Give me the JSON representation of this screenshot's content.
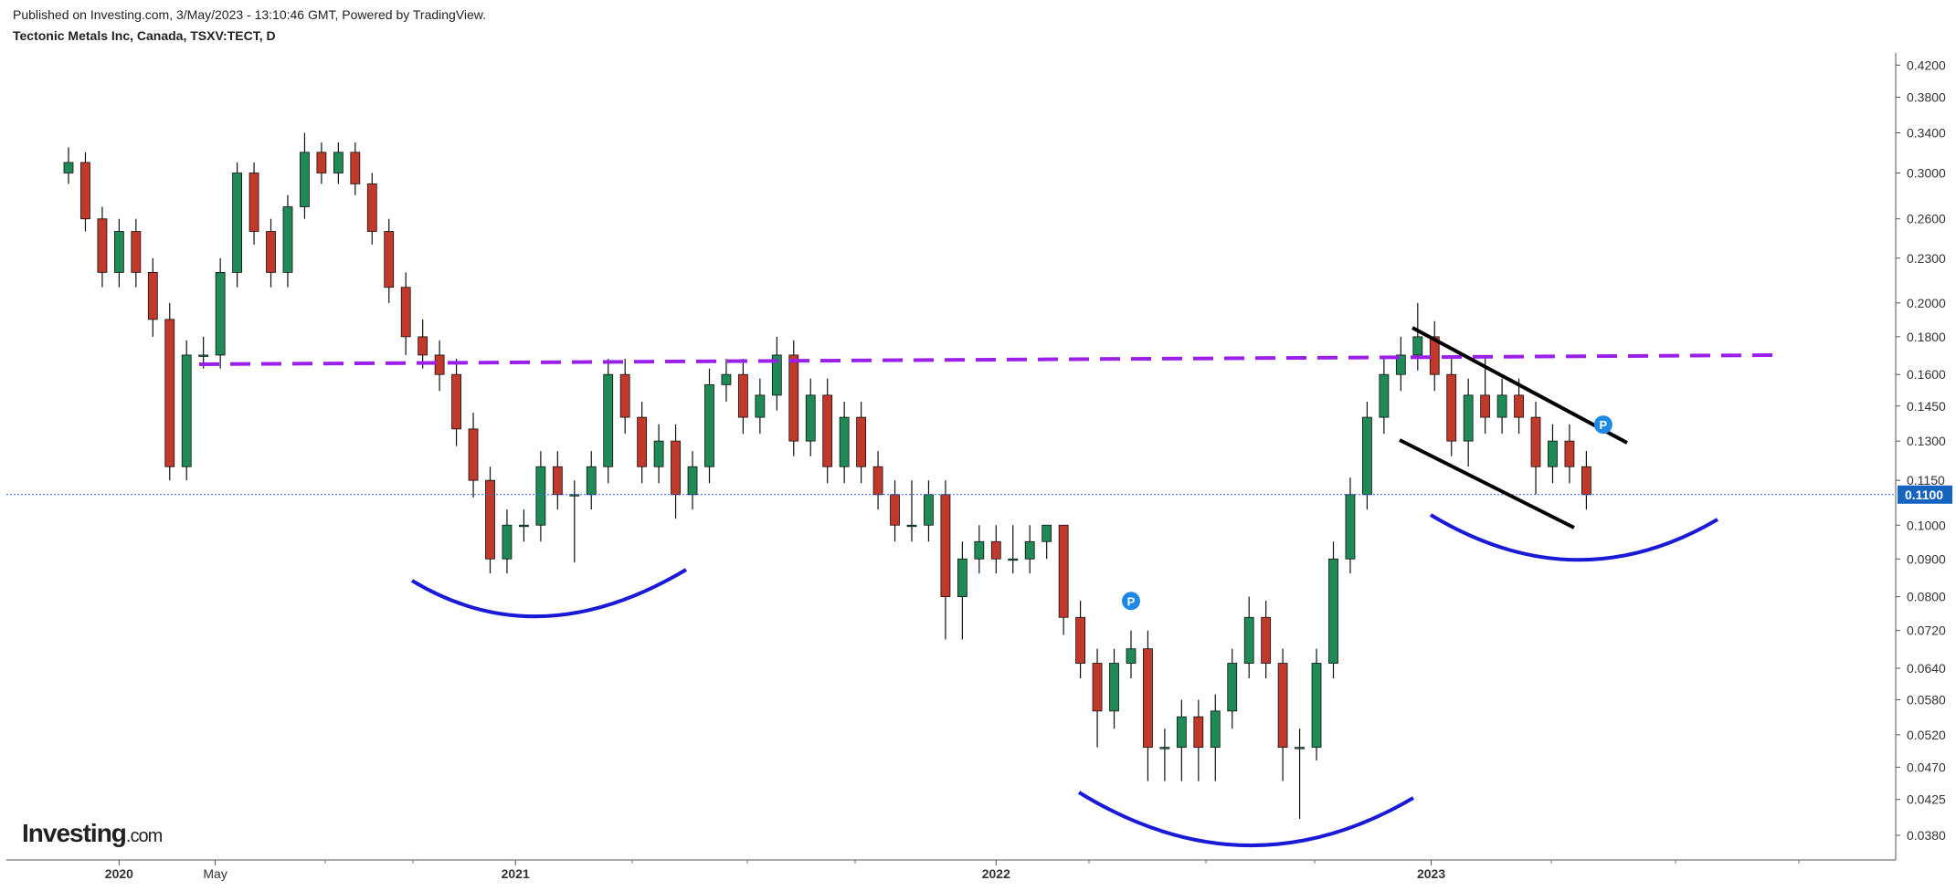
{
  "published": "Published on Investing.com, 3/May/2023 - 13:10:46 GMT, Powered by TradingView.",
  "logo": {
    "brand": "Investing",
    "suffix": ".com"
  },
  "chart_data": {
    "type": "candlestick",
    "title": "Tectonic Metals Inc, Canada, TSXV:TECT, D",
    "log_scale": true,
    "ylim": [
      0.036,
      0.44
    ],
    "yticks": [
      {
        "value": 0.42,
        "label": "0.4200"
      },
      {
        "value": 0.38,
        "label": "0.3800"
      },
      {
        "value": 0.34,
        "label": "0.3400"
      },
      {
        "value": 0.3,
        "label": "0.3000"
      },
      {
        "value": 0.26,
        "label": "0.2600"
      },
      {
        "value": 0.23,
        "label": "0.2300"
      },
      {
        "value": 0.2,
        "label": "0.2000"
      },
      {
        "value": 0.18,
        "label": "0.1800"
      },
      {
        "value": 0.16,
        "label": "0.1600"
      },
      {
        "value": 0.145,
        "label": "0.1450"
      },
      {
        "value": 0.13,
        "label": "0.1300"
      },
      {
        "value": 0.115,
        "label": "0.1150"
      },
      {
        "value": 0.1,
        "label": "0.1000"
      },
      {
        "value": 0.09,
        "label": "0.0900"
      },
      {
        "value": 0.08,
        "label": "0.0800"
      },
      {
        "value": 0.072,
        "label": "0.0720"
      },
      {
        "value": 0.064,
        "label": "0.0640"
      },
      {
        "value": 0.058,
        "label": "0.0580"
      },
      {
        "value": 0.052,
        "label": "0.0520"
      },
      {
        "value": 0.047,
        "label": "0.0470"
      },
      {
        "value": 0.0425,
        "label": "0.0425"
      },
      {
        "value": 0.038,
        "label": "0.0380"
      }
    ],
    "xticks": [
      {
        "value": 3,
        "label": "2020"
      },
      {
        "value": 8.7,
        "label": "May"
      },
      {
        "value": 26.5,
        "label": "2021"
      },
      {
        "value": 55,
        "label": "2022"
      },
      {
        "value": 80.8,
        "label": "2023"
      }
    ],
    "up_color": "#1f8a56",
    "down_color": "#c0392b",
    "last_price": {
      "value": 0.11,
      "label": "0.1100"
    },
    "markers": [
      {
        "index": 63,
        "value": 0.075,
        "label": "P"
      },
      {
        "index": 91,
        "value": 0.13,
        "label": "P"
      }
    ],
    "ohlc": [
      [
        0.3,
        0.325,
        0.29,
        0.31
      ],
      [
        0.31,
        0.32,
        0.25,
        0.26
      ],
      [
        0.26,
        0.27,
        0.21,
        0.22
      ],
      [
        0.22,
        0.26,
        0.21,
        0.25
      ],
      [
        0.25,
        0.26,
        0.21,
        0.22
      ],
      [
        0.22,
        0.23,
        0.18,
        0.19
      ],
      [
        0.19,
        0.2,
        0.115,
        0.12
      ],
      [
        0.12,
        0.178,
        0.115,
        0.17
      ],
      [
        0.17,
        0.18,
        0.163,
        0.17
      ],
      [
        0.17,
        0.23,
        0.163,
        0.22
      ],
      [
        0.22,
        0.31,
        0.21,
        0.3
      ],
      [
        0.3,
        0.31,
        0.24,
        0.25
      ],
      [
        0.25,
        0.26,
        0.21,
        0.22
      ],
      [
        0.22,
        0.28,
        0.21,
        0.27
      ],
      [
        0.27,
        0.34,
        0.26,
        0.32
      ],
      [
        0.32,
        0.33,
        0.29,
        0.3
      ],
      [
        0.3,
        0.33,
        0.29,
        0.32
      ],
      [
        0.32,
        0.33,
        0.28,
        0.29
      ],
      [
        0.29,
        0.3,
        0.24,
        0.25
      ],
      [
        0.25,
        0.26,
        0.2,
        0.21
      ],
      [
        0.21,
        0.22,
        0.17,
        0.18
      ],
      [
        0.18,
        0.19,
        0.163,
        0.17
      ],
      [
        0.17,
        0.178,
        0.152,
        0.16
      ],
      [
        0.16,
        0.168,
        0.128,
        0.135
      ],
      [
        0.135,
        0.142,
        0.109,
        0.115
      ],
      [
        0.115,
        0.12,
        0.086,
        0.09
      ],
      [
        0.09,
        0.105,
        0.086,
        0.1
      ],
      [
        0.1,
        0.105,
        0.095,
        0.1
      ],
      [
        0.1,
        0.126,
        0.095,
        0.12
      ],
      [
        0.12,
        0.126,
        0.105,
        0.11
      ],
      [
        0.11,
        0.115,
        0.089,
        0.11
      ],
      [
        0.11,
        0.126,
        0.105,
        0.12
      ],
      [
        0.12,
        0.168,
        0.114,
        0.16
      ],
      [
        0.16,
        0.168,
        0.133,
        0.14
      ],
      [
        0.14,
        0.147,
        0.114,
        0.12
      ],
      [
        0.12,
        0.137,
        0.114,
        0.13
      ],
      [
        0.13,
        0.137,
        0.102,
        0.11
      ],
      [
        0.11,
        0.126,
        0.105,
        0.12
      ],
      [
        0.12,
        0.163,
        0.114,
        0.155
      ],
      [
        0.155,
        0.168,
        0.147,
        0.16
      ],
      [
        0.16,
        0.168,
        0.133,
        0.14
      ],
      [
        0.14,
        0.158,
        0.133,
        0.15
      ],
      [
        0.15,
        0.18,
        0.143,
        0.17
      ],
      [
        0.17,
        0.178,
        0.124,
        0.13
      ],
      [
        0.13,
        0.158,
        0.124,
        0.15
      ],
      [
        0.15,
        0.158,
        0.114,
        0.12
      ],
      [
        0.12,
        0.147,
        0.114,
        0.14
      ],
      [
        0.14,
        0.147,
        0.114,
        0.12
      ],
      [
        0.12,
        0.126,
        0.105,
        0.11
      ],
      [
        0.11,
        0.115,
        0.095,
        0.1
      ],
      [
        0.1,
        0.115,
        0.095,
        0.1
      ],
      [
        0.1,
        0.115,
        0.095,
        0.11
      ],
      [
        0.11,
        0.115,
        0.07,
        0.08
      ],
      [
        0.08,
        0.095,
        0.07,
        0.09
      ],
      [
        0.09,
        0.1,
        0.086,
        0.095
      ],
      [
        0.095,
        0.1,
        0.086,
        0.09
      ],
      [
        0.09,
        0.1,
        0.086,
        0.09
      ],
      [
        0.09,
        0.1,
        0.086,
        0.095
      ],
      [
        0.095,
        0.1,
        0.09,
        0.1
      ],
      [
        0.1,
        0.1,
        0.071,
        0.075
      ],
      [
        0.075,
        0.079,
        0.062,
        0.065
      ],
      [
        0.065,
        0.068,
        0.05,
        0.056
      ],
      [
        0.056,
        0.068,
        0.053,
        0.065
      ],
      [
        0.065,
        0.072,
        0.062,
        0.068
      ],
      [
        0.068,
        0.072,
        0.045,
        0.05
      ],
      [
        0.05,
        0.053,
        0.045,
        0.05
      ],
      [
        0.05,
        0.058,
        0.045,
        0.055
      ],
      [
        0.055,
        0.058,
        0.045,
        0.05
      ],
      [
        0.05,
        0.059,
        0.045,
        0.056
      ],
      [
        0.056,
        0.068,
        0.053,
        0.065
      ],
      [
        0.065,
        0.08,
        0.062,
        0.075
      ],
      [
        0.075,
        0.079,
        0.062,
        0.065
      ],
      [
        0.065,
        0.068,
        0.045,
        0.05
      ],
      [
        0.05,
        0.053,
        0.04,
        0.05
      ],
      [
        0.05,
        0.068,
        0.048,
        0.065
      ],
      [
        0.065,
        0.095,
        0.062,
        0.09
      ],
      [
        0.09,
        0.116,
        0.086,
        0.11
      ],
      [
        0.11,
        0.147,
        0.105,
        0.14
      ],
      [
        0.14,
        0.168,
        0.133,
        0.16
      ],
      [
        0.16,
        0.18,
        0.152,
        0.17
      ],
      [
        0.17,
        0.2,
        0.162,
        0.18
      ],
      [
        0.18,
        0.189,
        0.152,
        0.16
      ],
      [
        0.16,
        0.168,
        0.124,
        0.13
      ],
      [
        0.13,
        0.158,
        0.12,
        0.15
      ],
      [
        0.15,
        0.17,
        0.133,
        0.14
      ],
      [
        0.14,
        0.158,
        0.133,
        0.15
      ],
      [
        0.15,
        0.158,
        0.133,
        0.14
      ],
      [
        0.14,
        0.147,
        0.11,
        0.12
      ],
      [
        0.12,
        0.137,
        0.114,
        0.13
      ],
      [
        0.13,
        0.137,
        0.114,
        0.12
      ],
      [
        0.12,
        0.126,
        0.105,
        0.11
      ]
    ]
  }
}
